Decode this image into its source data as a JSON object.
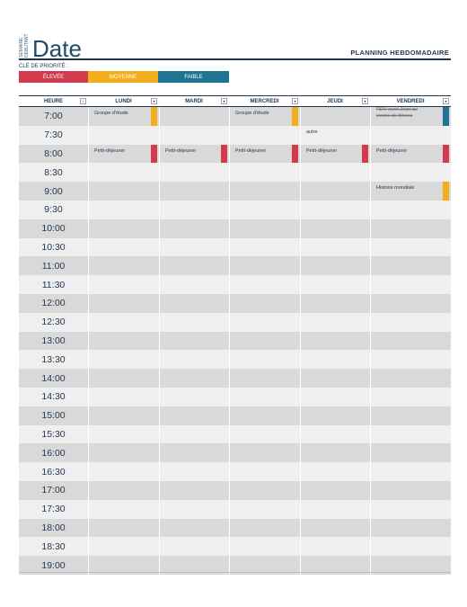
{
  "header": {
    "side_label_1": "SEMAINE",
    "side_label_2": "DÉBUTANT",
    "title": "Date",
    "subtitle": "PLANNING HEBDOMADAIRE"
  },
  "priority": {
    "label": "CLÉ DE PRIORITÉ :",
    "high": "ÉLEVÉE",
    "medium": "MOYENNE",
    "low": "FAIBLE"
  },
  "colors": {
    "high": "#d23a4e",
    "medium": "#f2ae1c",
    "low": "#1f7494"
  },
  "columns": [
    "HEURE",
    "LUNDI",
    "MARDI",
    "MERCREDI",
    "JEUDI",
    "VENDREDI"
  ],
  "times": [
    "7:00",
    "7:30",
    "8:00",
    "8:30",
    "9:00",
    "9:30",
    "10:00",
    "10:30",
    "11:00",
    "11:30",
    "12:00",
    "12:30",
    "13:00",
    "13:30",
    "14:00",
    "14:30",
    "15:00",
    "15:30",
    "16:00",
    "16:30",
    "17:00",
    "17:30",
    "18:00",
    "18:30",
    "19:00"
  ],
  "events": [
    {
      "row": 0,
      "col": 1,
      "text": "Groupe d'étude",
      "priority": "medium"
    },
    {
      "row": 0,
      "col": 3,
      "text": "Groupe d'étude",
      "priority": "medium"
    },
    {
      "row": 0,
      "col": 5,
      "text": "RDV avec Jean au centre de fitness",
      "priority": "low",
      "strike": true
    },
    {
      "row": 1,
      "col": 4,
      "text": "autre",
      "priority": null
    },
    {
      "row": 2,
      "col": 1,
      "text": "Petit-déjeuner",
      "priority": "high"
    },
    {
      "row": 2,
      "col": 2,
      "text": "Petit-déjeuner",
      "priority": "high"
    },
    {
      "row": 2,
      "col": 3,
      "text": "Petit-déjeuner",
      "priority": "high"
    },
    {
      "row": 2,
      "col": 4,
      "text": "Petit-déjeuner",
      "priority": "high"
    },
    {
      "row": 2,
      "col": 5,
      "text": "Petit-déjeuner",
      "priority": "high"
    },
    {
      "row": 4,
      "col": 5,
      "text": "Histoire mondiale",
      "priority": "medium"
    }
  ]
}
